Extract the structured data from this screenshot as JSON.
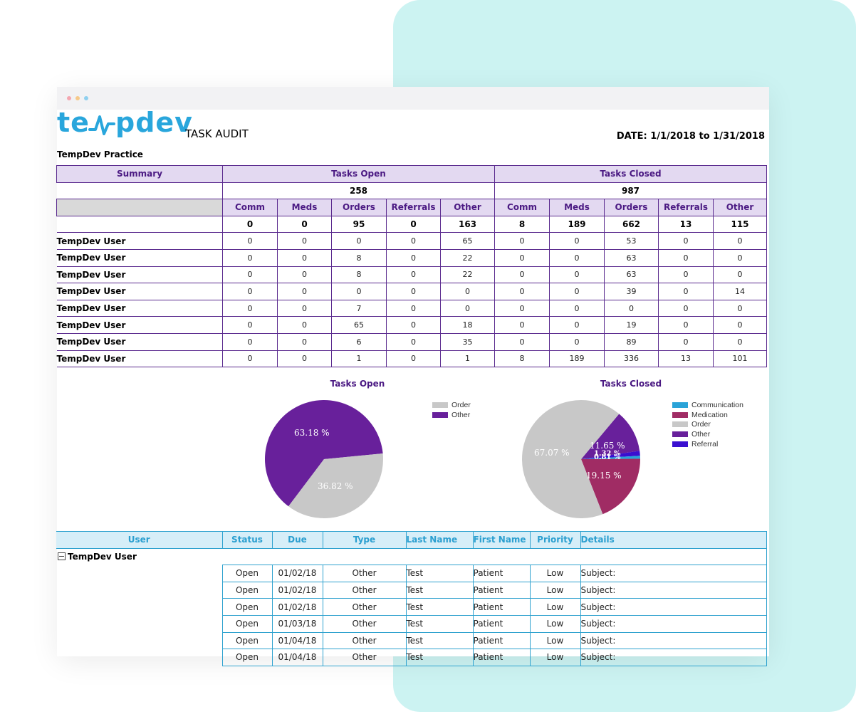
{
  "logo": {
    "text": "tempdev"
  },
  "report": {
    "title": "TASK AUDIT",
    "date_range": "DATE: 1/1/2018 to 1/31/2018",
    "practice": "TempDev Practice"
  },
  "summary_table": {
    "summary_label": "Summary",
    "open_label": "Tasks Open",
    "closed_label": "Tasks Closed",
    "open_total": "258",
    "closed_total": "987",
    "columns": [
      "Comm",
      "Meds",
      "Orders",
      "Referrals",
      "Other"
    ],
    "totals": [
      "0",
      "0",
      "95",
      "0",
      "163",
      "8",
      "189",
      "662",
      "13",
      "115"
    ],
    "rows": [
      {
        "user": "TempDev User",
        "values": [
          "0",
          "0",
          "0",
          "0",
          "65",
          "0",
          "0",
          "53",
          "0",
          "0"
        ]
      },
      {
        "user": "TempDev User",
        "values": [
          "0",
          "0",
          "8",
          "0",
          "22",
          "0",
          "0",
          "63",
          "0",
          "0"
        ]
      },
      {
        "user": "TempDev User",
        "values": [
          "0",
          "0",
          "8",
          "0",
          "22",
          "0",
          "0",
          "63",
          "0",
          "0"
        ]
      },
      {
        "user": "TempDev User",
        "values": [
          "0",
          "0",
          "0",
          "0",
          "0",
          "0",
          "0",
          "39",
          "0",
          "14"
        ]
      },
      {
        "user": "TempDev User",
        "values": [
          "0",
          "0",
          "7",
          "0",
          "0",
          "0",
          "0",
          "0",
          "0",
          "0"
        ]
      },
      {
        "user": "TempDev User",
        "values": [
          "0",
          "0",
          "65",
          "0",
          "18",
          "0",
          "0",
          "19",
          "0",
          "0"
        ]
      },
      {
        "user": "TempDev User",
        "values": [
          "0",
          "0",
          "6",
          "0",
          "35",
          "0",
          "0",
          "89",
          "0",
          "0"
        ]
      },
      {
        "user": "TempDev User",
        "values": [
          "0",
          "0",
          "1",
          "0",
          "1",
          "8",
          "189",
          "336",
          "13",
          "101"
        ]
      }
    ]
  },
  "charts": {
    "open": {
      "title": "Tasks Open",
      "legend": [
        {
          "label": "Order",
          "color": "#c8c8c8"
        },
        {
          "label": "Other",
          "color": "#68209b"
        }
      ],
      "slices": [
        {
          "label": "Other",
          "percent": 63.18,
          "display": "63.18 %",
          "color": "#68209b"
        },
        {
          "label": "Order",
          "percent": 36.82,
          "display": "36.82 %",
          "color": "#c8c8c8"
        }
      ]
    },
    "closed": {
      "title": "Tasks Closed",
      "legend": [
        {
          "label": "Communication",
          "color": "#2aa3d8"
        },
        {
          "label": "Medication",
          "color": "#a02c64"
        },
        {
          "label": "Order",
          "color": "#c8c8c8"
        },
        {
          "label": "Other",
          "color": "#68209b"
        },
        {
          "label": "Referral",
          "color": "#3a0fd0"
        }
      ],
      "slices": [
        {
          "label": "Other",
          "percent": 11.65,
          "display": "11.65 %",
          "color": "#68209b"
        },
        {
          "label": "Referral",
          "percent": 1.32,
          "display": "1.32 %",
          "color": "#3a0fd0"
        },
        {
          "label": "Communication",
          "percent": 0.81,
          "display": "0.81 %",
          "color": "#2aa3d8"
        },
        {
          "label": "Medication",
          "percent": 19.15,
          "display": "19.15 %",
          "color": "#a02c64"
        },
        {
          "label": "Order",
          "percent": 67.07,
          "display": "67.07 %",
          "color": "#c8c8c8"
        }
      ]
    }
  },
  "detail_table": {
    "headers": [
      "User",
      "Status",
      "Due",
      "Type",
      "Last Name",
      "First Name",
      "Priority",
      "Details"
    ],
    "group_label": "TempDev User",
    "group_icon": "collapse-minus-icon",
    "rows": [
      [
        "Open",
        "01/02/18",
        "Other",
        "Test",
        "Patient",
        "Low",
        "Subject:"
      ],
      [
        "Open",
        "01/02/18",
        "Other",
        "Test",
        "Patient",
        "Low",
        "Subject:"
      ],
      [
        "Open",
        "01/02/18",
        "Other",
        "Test",
        "Patient",
        "Low",
        "Subject:"
      ],
      [
        "Open",
        "01/03/18",
        "Other",
        "Test",
        "Patient",
        "Low",
        "Subject:"
      ],
      [
        "Open",
        "01/04/18",
        "Other",
        "Test",
        "Patient",
        "Low",
        "Subject:"
      ],
      [
        "Open",
        "01/04/18",
        "Other",
        "Test",
        "Patient",
        "Low",
        "Subject:"
      ]
    ]
  },
  "window": {
    "dots": [
      "#f4a7b1",
      "#f6c98a",
      "#8fd0ef"
    ]
  }
}
